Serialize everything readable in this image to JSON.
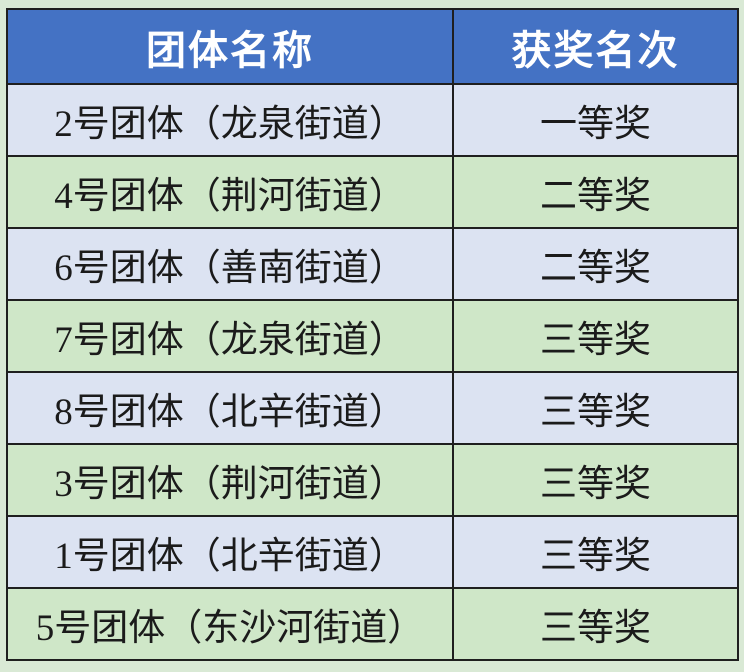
{
  "page": {
    "background": "#d9e9d5"
  },
  "colors": {
    "header_bg": "#4472c4",
    "header_text": "#ffffff",
    "row_lavender": "#dce3f2",
    "row_green": "#cfe7c8",
    "border": "#1f1f1f",
    "text": "#1b1b1b"
  },
  "table": {
    "columns": [
      {
        "label": "团体名称"
      },
      {
        "label": "获奖名次"
      }
    ],
    "rows": [
      {
        "group": "2号团体（龙泉街道）",
        "award": "一等奖",
        "variant": "lavender"
      },
      {
        "group": "4号团体（荆河街道）",
        "award": "二等奖",
        "variant": "green"
      },
      {
        "group": "6号团体（善南街道）",
        "award": "二等奖",
        "variant": "lavender"
      },
      {
        "group": "7号团体（龙泉街道）",
        "award": "三等奖",
        "variant": "green"
      },
      {
        "group": "8号团体（北辛街道）",
        "award": "三等奖",
        "variant": "lavender"
      },
      {
        "group": "3号团体（荆河街道）",
        "award": "三等奖",
        "variant": "green"
      },
      {
        "group": "1号团体（北辛街道）",
        "award": "三等奖",
        "variant": "lavender"
      },
      {
        "group": "5号团体（东沙河街道）",
        "award": "三等奖",
        "variant": "green"
      }
    ]
  },
  "chart_data": {
    "type": "table",
    "columns": [
      "团体名称",
      "获奖名次"
    ],
    "rows": [
      [
        "2号团体（龙泉街道）",
        "一等奖"
      ],
      [
        "4号团体（荆河街道）",
        "二等奖"
      ],
      [
        "6号团体（善南街道）",
        "二等奖"
      ],
      [
        "7号团体（龙泉街道）",
        "三等奖"
      ],
      [
        "8号团体（北辛街道）",
        "三等奖"
      ],
      [
        "3号团体（荆河街道）",
        "三等奖"
      ],
      [
        "1号团体（北辛街道）",
        "三等奖"
      ],
      [
        "5号团体（东沙河街道）",
        "三等奖"
      ]
    ]
  }
}
